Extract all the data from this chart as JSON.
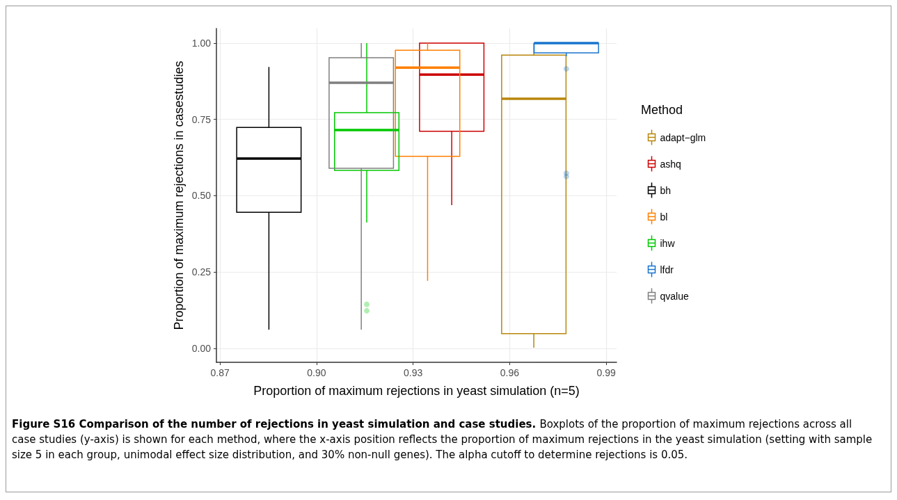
{
  "chart_data": {
    "type": "box",
    "xlabel": "Proportion of maximum rejections in yeast simulation (n=5)",
    "ylabel": "Proportion of maximum rejections in casestudies",
    "legend_title": "Method",
    "xlim": [
      0.8689,
      0.9932
    ],
    "xticks": [
      {
        "value": 0.87,
        "label": "0.87"
      },
      {
        "value": 0.9,
        "label": "0.90"
      },
      {
        "value": 0.93,
        "label": "0.93"
      },
      {
        "value": 0.96,
        "label": "0.96"
      },
      {
        "value": 0.99,
        "label": "0.99"
      }
    ],
    "ylim": [
      -0.046,
      1.048
    ],
    "yticks": [
      {
        "value": 0,
        "label": "0.00"
      },
      {
        "value": 0.25,
        "label": "0.25"
      },
      {
        "value": 0.5,
        "label": "0.50"
      },
      {
        "value": 0.75,
        "label": "0.75"
      },
      {
        "value": 1,
        "label": "1.00"
      }
    ],
    "grid": true,
    "legend": "right",
    "series": [
      {
        "name": "adapt−glm",
        "color": "#b8860b",
        "x": [
          0.9675
        ],
        "boxes": [
          {
            "low": 0.002,
            "q1": 0.048,
            "median": 0.818,
            "q3": 0.961,
            "high": 1.0
          }
        ]
      },
      {
        "name": "ashq",
        "color": "#cd0000",
        "x": [
          0.942
        ],
        "boxes": [
          {
            "low": 0.469,
            "q1": 0.711,
            "median": 0.897,
            "q3": 1.0,
            "high": 1.0
          }
        ]
      },
      {
        "name": "bh",
        "color": "#000000",
        "x": [
          0.8852
        ],
        "boxes": [
          {
            "low": 0.061,
            "q1": 0.446,
            "median": 0.622,
            "q3": 0.724,
            "high": 0.922
          }
        ]
      },
      {
        "name": "bl",
        "color": "#ff7f00",
        "x": [
          0.9345
        ],
        "boxes": [
          {
            "low": 0.221,
            "q1": 0.629,
            "median": 0.92,
            "q3": 0.977,
            "high": 1.0
          }
        ]
      },
      {
        "name": "ihw",
        "color": "#00c800",
        "x": [
          0.9156
        ],
        "boxes": [
          {
            "low": 0.412,
            "q1": 0.583,
            "median": 0.715,
            "q3": 0.772,
            "high": 1.0,
            "outliers": [
              0.144,
              0.123
            ]
          }
        ]
      },
      {
        "name": "lfdr",
        "color": "#1874cd",
        "x": [
          0.9776
        ],
        "boxes": [
          {
            "low": 0.957,
            "q1": 0.968,
            "median": 1.0,
            "q3": 1.0,
            "high": 1.0,
            "outliers": [
              0.916,
              0.574,
              0.563
            ]
          }
        ]
      },
      {
        "name": "qvalue",
        "color": "#7f7f7f",
        "x": [
          0.9139
        ],
        "boxes": [
          {
            "low": 0.061,
            "q1": 0.59,
            "median": 0.87,
            "q3": 0.952,
            "high": 1.0
          }
        ]
      }
    ],
    "annotations": [
      "Figure S16 Comparison of the number of rejections in yeast simulation and case studies.",
      "Boxplots of the proportion of maximum rejections across all case studies (y-axis) is shown for each method, where the x-axis position reflects the proportion of maximum rejections in the yeast simulation (setting with sample size 5 in each group, unimodal effect size distribution, and 30% non-null genes). The alpha cutoff to determine rejections is 0.05."
    ]
  }
}
